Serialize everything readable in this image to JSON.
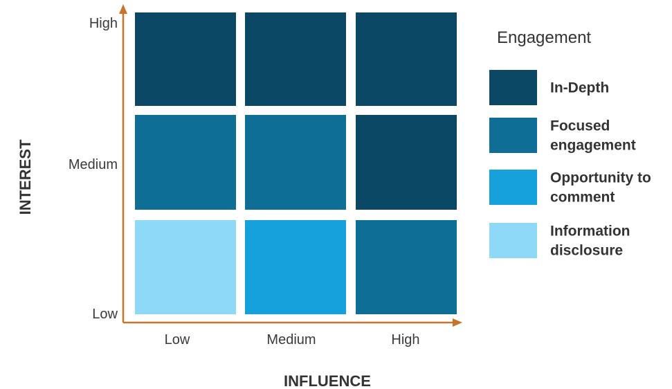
{
  "chart_data": {
    "type": "heatmap",
    "xlabel": "INFLUENCE",
    "ylabel": "INTEREST",
    "x_categories": [
      "Low",
      "Medium",
      "High"
    ],
    "y_categories": [
      "Low",
      "Medium",
      "High"
    ],
    "legend": {
      "title": "Engagement",
      "placement": "right",
      "entries": [
        {
          "key": "in_depth",
          "lines": [
            "In-Depth"
          ],
          "color": "#0b4866"
        },
        {
          "key": "focused",
          "lines": [
            "Focused",
            "engagement"
          ],
          "color": "#0f6e96"
        },
        {
          "key": "opportunity",
          "lines": [
            "Opportunity to",
            "comment"
          ],
          "color": "#16a1dc"
        },
        {
          "key": "information",
          "lines": [
            "Information",
            "disclosure"
          ],
          "color": "#8ed8f8"
        }
      ]
    },
    "cells": [
      {
        "x": "Low",
        "y": "High",
        "level": "in_depth"
      },
      {
        "x": "Medium",
        "y": "High",
        "level": "in_depth"
      },
      {
        "x": "High",
        "y": "High",
        "level": "in_depth"
      },
      {
        "x": "Low",
        "y": "Medium",
        "level": "focused"
      },
      {
        "x": "Medium",
        "y": "Medium",
        "level": "focused"
      },
      {
        "x": "High",
        "y": "Medium",
        "level": "in_depth"
      },
      {
        "x": "Low",
        "y": "Low",
        "level": "information"
      },
      {
        "x": "Medium",
        "y": "Low",
        "level": "opportunity"
      },
      {
        "x": "High",
        "y": "Low",
        "level": "focused"
      }
    ],
    "axis_color": "#c8742c"
  }
}
